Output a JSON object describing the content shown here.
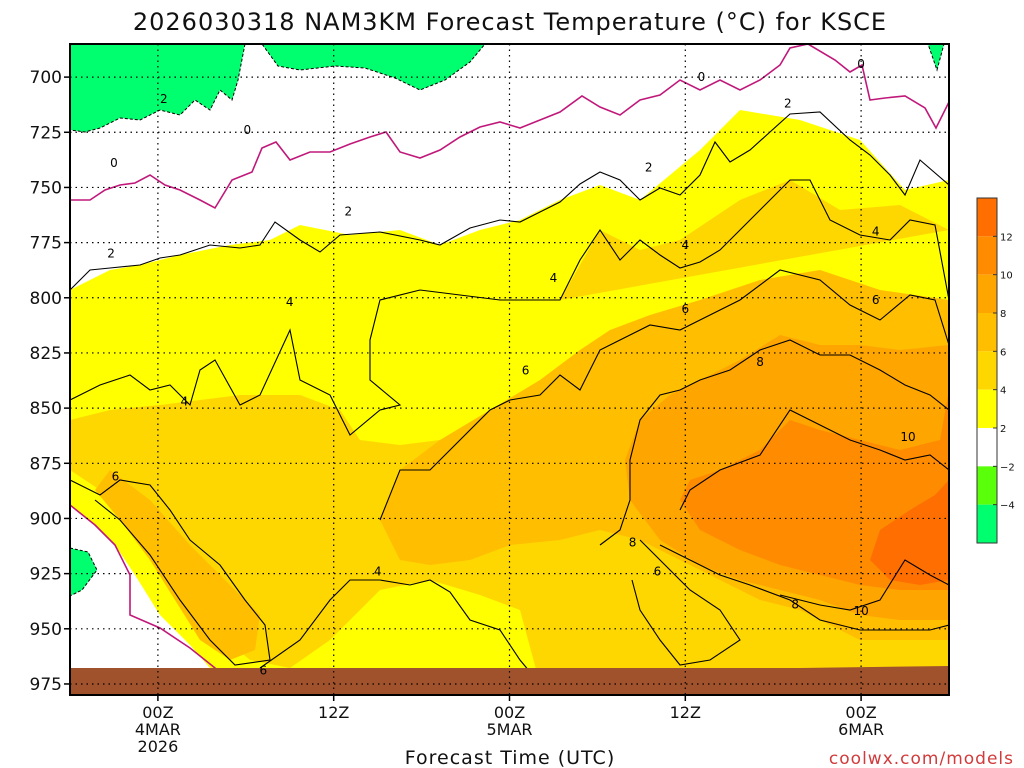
{
  "chart_data": {
    "type": "heatmap",
    "title": "2026030318 NAM3KM Forecast Temperature (°C) for KSCE",
    "xlabel": "Forecast Time (UTC)",
    "ylabel": "",
    "credit": "coolwx.com/models",
    "y_ticks": [
      700,
      725,
      750,
      775,
      800,
      825,
      850,
      875,
      900,
      925,
      950,
      975
    ],
    "ylim": [
      980,
      685
    ],
    "x_ticks": [
      {
        "hour": 6,
        "lines": [
          "00Z",
          "4MAR",
          "2026"
        ]
      },
      {
        "hour": 18,
        "lines": [
          "12Z"
        ]
      },
      {
        "hour": 30,
        "lines": [
          "00Z",
          "5MAR"
        ]
      },
      {
        "hour": 42,
        "lines": [
          "12Z"
        ]
      },
      {
        "hour": 54,
        "lines": [
          "00Z",
          "6MAR"
        ]
      }
    ],
    "xlim": [
      0,
      60
    ],
    "colorbar": {
      "labels": [
        "12",
        "10",
        "8",
        "6",
        "4",
        "2",
        "−2",
        "−4"
      ],
      "bins": [
        {
          "range": [
            12,
            14
          ],
          "color": "#ff6e00"
        },
        {
          "range": [
            10,
            12
          ],
          "color": "#ff8c00"
        },
        {
          "range": [
            8,
            10
          ],
          "color": "#ffa500"
        },
        {
          "range": [
            6,
            8
          ],
          "color": "#ffbe00"
        },
        {
          "range": [
            4,
            6
          ],
          "color": "#ffd700"
        },
        {
          "range": [
            2,
            4
          ],
          "color": "#ffff00"
        },
        {
          "range": [
            -2,
            2
          ],
          "color": "#ffffff"
        },
        {
          "range": [
            -4,
            -2
          ],
          "color": "#5aff0a"
        },
        {
          "range": [
            -6,
            -4
          ],
          "color": "#00ff6e"
        }
      ]
    },
    "contour_labels": [
      {
        "text": "2",
        "t": 6.4,
        "p": 710
      },
      {
        "text": "0",
        "t": 12.1,
        "p": 724
      },
      {
        "text": "0",
        "t": 3.0,
        "p": 739
      },
      {
        "text": "2",
        "t": 2.8,
        "p": 780
      },
      {
        "text": "2",
        "t": 19.0,
        "p": 761
      },
      {
        "text": "4",
        "t": 15.0,
        "p": 802
      },
      {
        "text": "4",
        "t": 7.8,
        "p": 847
      },
      {
        "text": "6",
        "t": 3.1,
        "p": 881
      },
      {
        "text": "6",
        "t": 13.2,
        "p": 969
      },
      {
        "text": "4",
        "t": 21.0,
        "p": 924
      },
      {
        "text": "4",
        "t": 33.0,
        "p": 791
      },
      {
        "text": "6",
        "t": 31.1,
        "p": 833
      },
      {
        "text": "2",
        "t": 39.5,
        "p": 741
      },
      {
        "text": "4",
        "t": 42.0,
        "p": 776
      },
      {
        "text": "6",
        "t": 42.0,
        "p": 805
      },
      {
        "text": "8",
        "t": 38.4,
        "p": 911
      },
      {
        "text": "6",
        "t": 40.1,
        "p": 924
      },
      {
        "text": "8",
        "t": 47.1,
        "p": 829
      },
      {
        "text": "2",
        "t": 49.0,
        "p": 712
      },
      {
        "text": "4",
        "t": 55.0,
        "p": 770
      },
      {
        "text": "6",
        "t": 55.0,
        "p": 801
      },
      {
        "text": "0",
        "t": 54.0,
        "p": 694
      },
      {
        "text": "0",
        "t": 43.1,
        "p": 700
      },
      {
        "text": "10",
        "t": 57.2,
        "p": 863
      },
      {
        "text": "10",
        "t": 54.0,
        "p": 942
      },
      {
        "text": "8",
        "t": 49.5,
        "p": 939
      }
    ]
  }
}
